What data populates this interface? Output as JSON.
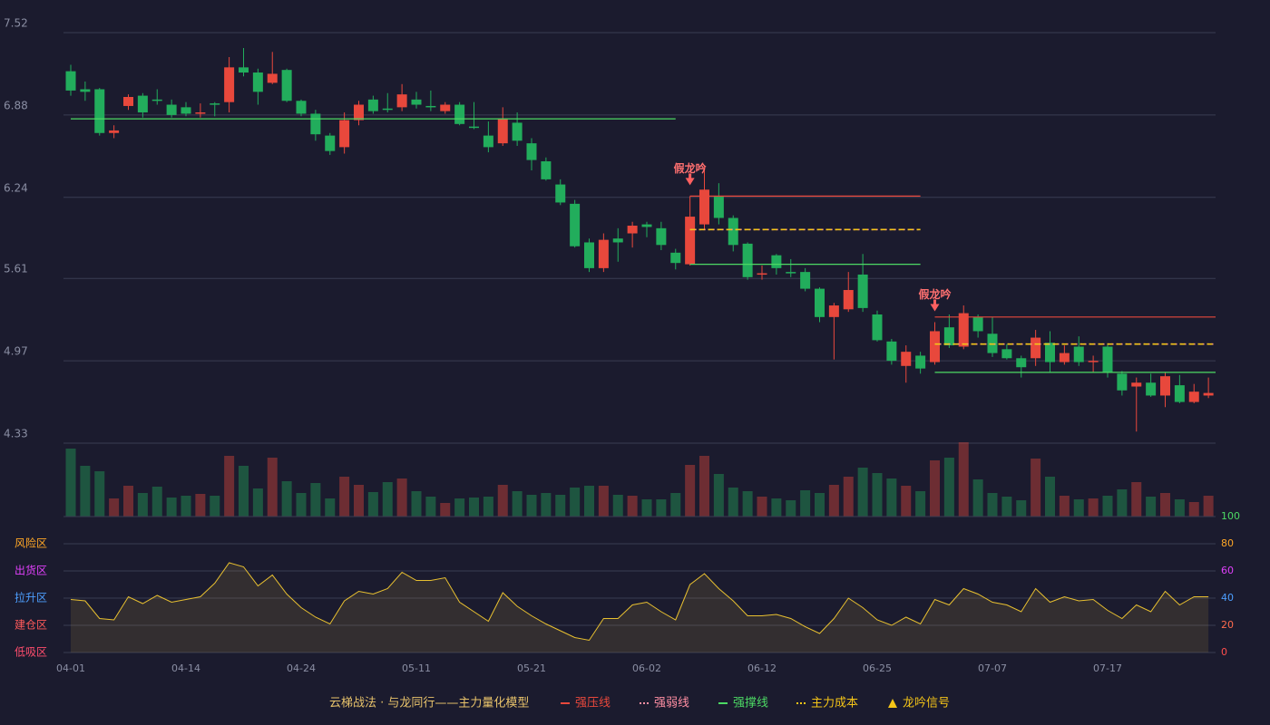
{
  "chart_data": [
    {
      "type": "candlestick",
      "categories": [
        "04-01",
        null,
        null,
        null,
        null,
        null,
        null,
        null,
        "04-14",
        null,
        null,
        null,
        null,
        null,
        null,
        null,
        "04-24",
        null,
        null,
        null,
        null,
        null,
        null,
        null,
        "05-11",
        null,
        null,
        null,
        null,
        null,
        null,
        null,
        "05-21",
        null,
        null,
        null,
        null,
        null,
        null,
        null,
        "06-02",
        null,
        null,
        null,
        null,
        null,
        null,
        null,
        "06-12",
        null,
        null,
        null,
        null,
        null,
        null,
        null,
        "06-25",
        null,
        null,
        null,
        null,
        null,
        null,
        null,
        "07-07",
        null,
        null,
        null,
        null,
        null,
        null,
        null,
        "07-17",
        null,
        null,
        null,
        null,
        null,
        null,
        null
      ],
      "open": [
        7.22,
        7.08,
        7.08,
        6.74,
        6.95,
        7.03,
        7.0,
        6.96,
        6.94,
        6.89,
        6.97,
        6.98,
        7.25,
        7.21,
        7.13,
        7.23,
        6.99,
        6.89,
        6.72,
        6.63,
        6.84,
        7.0,
        6.93,
        6.94,
        7.0,
        6.95,
        6.91,
        6.96,
        6.79,
        6.72,
        6.66,
        6.82,
        6.66,
        6.52,
        6.34,
        6.19,
        5.89,
        5.69,
        5.92,
        5.96,
        6.03,
        6.0,
        5.81,
        5.72,
        6.03,
        6.25,
        6.08,
        5.88,
        5.64,
        5.79,
        5.66,
        5.66,
        5.53,
        5.31,
        5.37,
        5.64,
        5.33,
        5.12,
        4.93,
        5.01,
        4.96,
        5.23,
        5.08,
        5.31,
        5.18,
        5.06,
        4.99,
        4.99,
        5.11,
        4.96,
        5.08,
        4.96,
        5.08,
        4.87,
        4.77,
        4.8,
        4.7,
        4.78,
        4.65,
        4.7
      ],
      "high": [
        7.27,
        7.14,
        7.09,
        6.8,
        7.04,
        7.05,
        7.08,
        7.0,
        6.98,
        6.97,
        6.98,
        7.33,
        7.4,
        7.24,
        7.37,
        7.24,
        7.0,
        6.92,
        6.74,
        6.9,
        6.99,
        7.03,
        7.05,
        7.12,
        7.06,
        7.07,
        6.98,
        6.98,
        6.98,
        6.83,
        6.94,
        6.9,
        6.7,
        6.55,
        6.38,
        6.22,
        5.92,
        5.96,
        6.0,
        6.05,
        6.05,
        6.05,
        5.84,
        6.25,
        6.48,
        6.35,
        6.1,
        5.89,
        5.71,
        5.8,
        5.76,
        5.69,
        5.54,
        5.42,
        5.66,
        5.8,
        5.36,
        5.14,
        5.09,
        5.04,
        5.27,
        5.33,
        5.4,
        5.33,
        5.31,
        5.1,
        5.01,
        5.21,
        5.2,
        5.09,
        5.16,
        5.01,
        5.1,
        4.89,
        4.84,
        4.87,
        4.88,
        4.86,
        4.79,
        4.84
      ],
      "low": [
        7.03,
        6.99,
        6.72,
        6.7,
        6.92,
        6.86,
        6.96,
        6.86,
        6.87,
        6.86,
        6.87,
        6.9,
        7.18,
        6.96,
        7.12,
        6.98,
        6.87,
        6.68,
        6.57,
        6.58,
        6.8,
        6.89,
        6.9,
        6.91,
        6.93,
        6.91,
        6.89,
        6.8,
        6.77,
        6.59,
        6.64,
        6.64,
        6.45,
        6.37,
        6.18,
        5.85,
        5.66,
        5.66,
        5.74,
        5.85,
        5.93,
        5.83,
        5.68,
        5.71,
        5.99,
        6.03,
        5.82,
        5.6,
        5.6,
        5.64,
        5.62,
        5.51,
        5.27,
        4.98,
        5.35,
        5.35,
        5.12,
        4.94,
        4.8,
        4.87,
        4.94,
        5.07,
        5.06,
        5.15,
        5.0,
        4.98,
        4.84,
        4.93,
        4.88,
        4.94,
        4.93,
        4.88,
        4.84,
        4.7,
        4.42,
        4.69,
        4.61,
        4.64,
        4.64,
        4.68
      ],
      "close": [
        7.07,
        7.06,
        6.74,
        6.76,
        7.02,
        6.9,
        6.99,
        6.88,
        6.89,
        6.9,
        6.96,
        7.25,
        7.21,
        7.06,
        7.2,
        6.99,
        6.89,
        6.73,
        6.6,
        6.84,
        6.96,
        6.91,
        6.92,
        7.04,
        6.96,
        6.94,
        6.96,
        6.81,
        6.78,
        6.63,
        6.85,
        6.68,
        6.53,
        6.38,
        6.2,
        5.86,
        5.69,
        5.91,
        5.89,
        6.02,
        6.01,
        5.87,
        5.73,
        6.09,
        6.3,
        6.08,
        5.87,
        5.62,
        5.65,
        5.69,
        5.65,
        5.53,
        5.31,
        5.4,
        5.52,
        5.38,
        5.13,
        4.97,
        5.04,
        4.91,
        5.2,
        5.09,
        5.34,
        5.2,
        5.03,
        4.99,
        4.92,
        5.15,
        4.96,
        5.03,
        4.96,
        4.97,
        4.88,
        4.74,
        4.8,
        4.7,
        4.85,
        4.65,
        4.73,
        4.72
      ],
      "volume": [
        75,
        56,
        50,
        20,
        34,
        26,
        33,
        21,
        23,
        25,
        23,
        67,
        56,
        31,
        65,
        39,
        26,
        37,
        20,
        44,
        35,
        27,
        38,
        42,
        28,
        22,
        15,
        20,
        21,
        22,
        35,
        28,
        24,
        26,
        24,
        32,
        34,
        34,
        24,
        23,
        19,
        19,
        26,
        57,
        67,
        47,
        32,
        28,
        22,
        20,
        18,
        29,
        26,
        35,
        44,
        54,
        48,
        42,
        34,
        28,
        62,
        65,
        82,
        41,
        26,
        22,
        18,
        64,
        44,
        23,
        19,
        20,
        23,
        30,
        38,
        22,
        26,
        19,
        16,
        23
      ],
      "up_color": "#e8483c",
      "down_color": "#22ad5c",
      "ylim": [
        4.33,
        7.52
      ],
      "yticks": [
        4.33,
        4.97,
        5.61,
        6.24,
        6.88,
        7.52
      ],
      "grid": true,
      "levels": [
        {
          "name": "强压线",
          "color": "#e8483c",
          "dash": "solid",
          "segments": [
            {
              "from": 43,
              "to": 59,
              "value": 6.25
            },
            {
              "from": 60,
              "to": 79,
              "value": 5.31
            }
          ]
        },
        {
          "name": "强弱线",
          "color": "#ff8fa3",
          "dash": "dot",
          "segments": [
            {
              "from": 43,
              "to": 59,
              "value": 5.99
            },
            {
              "from": 60,
              "to": 79,
              "value": 5.1
            }
          ]
        },
        {
          "name": "强撑线",
          "color": "#4cd964",
          "dash": "solid",
          "segments": [
            {
              "from": 0,
              "to": 42,
              "value": 6.85
            },
            {
              "from": 43,
              "to": 59,
              "value": 5.72
            },
            {
              "from": 60,
              "to": 79,
              "value": 4.88
            }
          ]
        },
        {
          "name": "主力成本",
          "color": "#f5c518",
          "dash": "dash",
          "segments": [
            {
              "from": 43,
              "to": 59,
              "value": 5.99
            },
            {
              "from": 60,
              "to": 79,
              "value": 5.1
            }
          ]
        }
      ],
      "signals": [
        {
          "index": 43,
          "label": "假龙吟"
        },
        {
          "index": 60,
          "label": "假龙吟"
        }
      ],
      "signal_legend": {
        "name": "龙吟信号",
        "color": "#f5c518"
      },
      "legend_title": "云梯战法 · 与龙同行——主力量化模型"
    },
    {
      "type": "area",
      "values": [
        39,
        38,
        25,
        24,
        41,
        36,
        42,
        37,
        39,
        41,
        51,
        66,
        63,
        49,
        57,
        43,
        33,
        26,
        21,
        38,
        45,
        43,
        47,
        59,
        53,
        53,
        55,
        37,
        30,
        23,
        44,
        34,
        27,
        21,
        16,
        11,
        9,
        25,
        25,
        35,
        37,
        30,
        24,
        50,
        58,
        47,
        38,
        27,
        27,
        28,
        25,
        19,
        14,
        25,
        40,
        33,
        24,
        20,
        26,
        21,
        39,
        35,
        47,
        43,
        37,
        35,
        30,
        47,
        37,
        41,
        38,
        39,
        31,
        25,
        35,
        30,
        45,
        35,
        41,
        41
      ],
      "color": "#e8c030",
      "ylim": [
        0,
        100
      ],
      "yticks": [
        {
          "value": 0,
          "label": "0",
          "color": "#ff4d4d"
        },
        {
          "value": 20,
          "label": "20",
          "color": "#ff6b4d"
        },
        {
          "value": 40,
          "label": "40",
          "color": "#4d9fff"
        },
        {
          "value": 60,
          "label": "60",
          "color": "#e040fb"
        },
        {
          "value": 80,
          "label": "80",
          "color": "#ffa726"
        },
        {
          "value": 100,
          "label": "100",
          "color": "#4cd964"
        }
      ],
      "zones": [
        {
          "value": 80,
          "label": "风险区",
          "color": "#ffa726"
        },
        {
          "value": 60,
          "label": "出货区",
          "color": "#e040fb"
        },
        {
          "value": 40,
          "label": "拉升区",
          "color": "#4d9fff"
        },
        {
          "value": 20,
          "label": "建仓区",
          "color": "#ff5a5a"
        },
        {
          "value": 0,
          "label": "低吸区",
          "color": "#ff4d6d"
        }
      ]
    }
  ]
}
